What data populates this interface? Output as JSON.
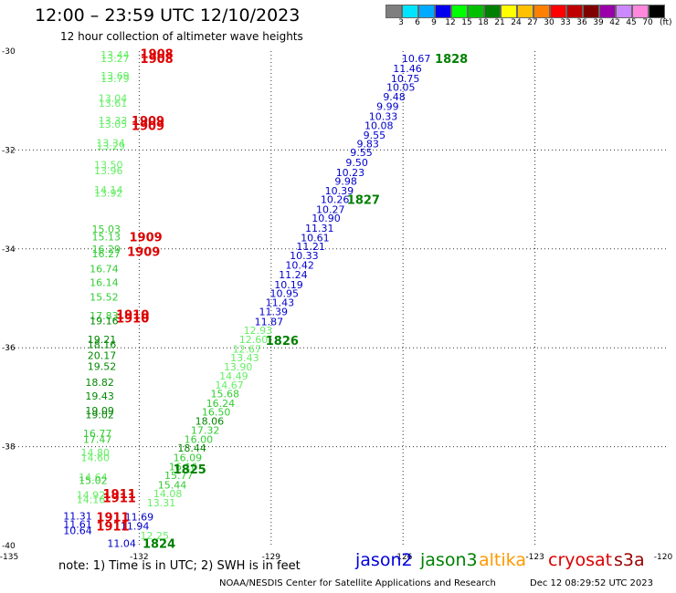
{
  "header": {
    "title": "12:00 – 23:59 UTC 12/10/2023",
    "subtitle": "12 hour collection of altimeter wave heights"
  },
  "color_scale": {
    "unit": "(ft)",
    "bins": [
      {
        "label": "3",
        "color": "#7f7f7f"
      },
      {
        "label": "6",
        "color": "#00e5ff"
      },
      {
        "label": "9",
        "color": "#00aaff"
      },
      {
        "label": "12",
        "color": "#0000ee"
      },
      {
        "label": "15",
        "color": "#00ff00"
      },
      {
        "label": "18",
        "color": "#00c000"
      },
      {
        "label": "21",
        "color": "#008000"
      },
      {
        "label": "24",
        "color": "#ffff00"
      },
      {
        "label": "27",
        "color": "#ffc000"
      },
      {
        "label": "30",
        "color": "#ff8000"
      },
      {
        "label": "33",
        "color": "#ff0000"
      },
      {
        "label": "36",
        "color": "#c00000"
      },
      {
        "label": "39",
        "color": "#800000"
      },
      {
        "label": "42",
        "color": "#9900aa"
      },
      {
        "label": "45",
        "color": "#cc88ff"
      },
      {
        "label": "70",
        "color": "#ff88dd"
      },
      {
        "label": "",
        "color": "#000000"
      }
    ]
  },
  "footer": {
    "note": "note:  1) Time is in UTC;  2) SWH is in feet",
    "satellites": [
      {
        "name": "jason2",
        "color": "#0000dd"
      },
      {
        "name": "jason3",
        "color": "#008000"
      },
      {
        "name": "altika",
        "color": "#ff9900"
      },
      {
        "name": "cryosat",
        "color": "#dd0000"
      },
      {
        "name": "s3a",
        "color": "#990000"
      }
    ],
    "credit": "NOAA/NESDIS Center for Satellite Applications and Research",
    "timestamp": "Dec 12 08:29:52 UTC 2023"
  },
  "chart_data": {
    "type": "scatter",
    "xlim": [
      -135,
      -120
    ],
    "ylim": [
      -40,
      -30
    ],
    "x_ticks": [
      "-135",
      "-132",
      "-129",
      "-126",
      "-123",
      "-120"
    ],
    "y_ticks": [
      "-30",
      "-32",
      "-34",
      "-36",
      "-38",
      "-40"
    ],
    "grid": true,
    "colors": {
      "swh_9_12": "#0000cc",
      "swh_12_15": "#66ee66",
      "swh_15_18": "#33cc33",
      "swh_18_21": "#008800",
      "time": "#008000",
      "time_cryosat": "#dd0000"
    },
    "series": [
      {
        "name": "jason2",
        "points": [
          {
            "lon": -125.7,
            "lat": -30.15,
            "swh": "10.67",
            "color": "#0000cc"
          },
          {
            "lon": -125.9,
            "lat": -30.35,
            "swh": "11.46",
            "color": "#0000cc"
          },
          {
            "lon": -125.95,
            "lat": -30.55,
            "swh": "10.75",
            "color": "#0000cc"
          },
          {
            "lon": -126.05,
            "lat": -30.73,
            "swh": "10.05",
            "color": "#0000cc"
          },
          {
            "lon": -126.2,
            "lat": -30.92,
            "swh": "9.48",
            "color": "#0000cc"
          },
          {
            "lon": -126.35,
            "lat": -31.12,
            "swh": "9.99",
            "color": "#0000cc"
          },
          {
            "lon": -126.45,
            "lat": -31.32,
            "swh": "10.33",
            "color": "#0000cc"
          },
          {
            "lon": -126.55,
            "lat": -31.5,
            "swh": "10.08",
            "color": "#0000cc"
          },
          {
            "lon": -126.65,
            "lat": -31.7,
            "swh": "9.55",
            "color": "#0000cc"
          },
          {
            "lon": -126.8,
            "lat": -31.87,
            "swh": "9.83",
            "color": "#0000cc"
          },
          {
            "lon": -126.95,
            "lat": -32.05,
            "swh": "9.55",
            "color": "#0000cc"
          },
          {
            "lon": -127.05,
            "lat": -32.25,
            "swh": "9.50",
            "color": "#0000cc"
          },
          {
            "lon": -127.2,
            "lat": -32.45,
            "swh": "10.23",
            "color": "#0000cc"
          },
          {
            "lon": -127.3,
            "lat": -32.63,
            "swh": "9.98",
            "color": "#0000cc"
          },
          {
            "lon": -127.45,
            "lat": -32.82,
            "swh": "10.39",
            "color": "#0000cc"
          },
          {
            "lon": -127.55,
            "lat": -33.0,
            "swh": "10.26",
            "color": "#0000cc"
          },
          {
            "lon": -127.65,
            "lat": -33.2,
            "swh": "10.27",
            "color": "#0000cc"
          },
          {
            "lon": -127.75,
            "lat": -33.38,
            "swh": "10.90",
            "color": "#0000cc"
          },
          {
            "lon": -127.9,
            "lat": -33.58,
            "swh": "11.31",
            "color": "#0000cc"
          },
          {
            "lon": -128.0,
            "lat": -33.77,
            "swh": "10.61",
            "color": "#0000cc"
          },
          {
            "lon": -128.1,
            "lat": -33.95,
            "swh": "11.21",
            "color": "#0000cc"
          },
          {
            "lon": -128.25,
            "lat": -34.13,
            "swh": "10.33",
            "color": "#0000cc"
          },
          {
            "lon": -128.35,
            "lat": -34.33,
            "swh": "10.42",
            "color": "#0000cc"
          },
          {
            "lon": -128.5,
            "lat": -34.52,
            "swh": "11.24",
            "color": "#0000cc"
          },
          {
            "lon": -128.6,
            "lat": -34.72,
            "swh": "10.19",
            "color": "#0000cc"
          },
          {
            "lon": -128.7,
            "lat": -34.9,
            "swh": "10.95",
            "color": "#0000cc"
          },
          {
            "lon": -128.8,
            "lat": -35.08,
            "swh": "11.43",
            "color": "#0000cc"
          },
          {
            "lon": -128.95,
            "lat": -35.27,
            "swh": "11.39",
            "color": "#0000cc"
          },
          {
            "lon": -129.05,
            "lat": -35.47,
            "swh": "11.87",
            "color": "#0000cc"
          },
          {
            "lon": -132.0,
            "lat": -39.42,
            "swh": "11.69",
            "color": "#0000cc"
          },
          {
            "lon": -132.1,
            "lat": -39.6,
            "swh": "11.94",
            "color": "#0000cc"
          },
          {
            "lon": -132.4,
            "lat": -39.95,
            "swh": "11.04",
            "color": "#0000cc"
          },
          {
            "lon": -133.4,
            "lat": -39.4,
            "swh": "11.31",
            "color": "#0000cc"
          },
          {
            "lon": -133.4,
            "lat": -39.57,
            "swh": "11.61",
            "color": "#0000cc"
          },
          {
            "lon": -133.4,
            "lat": -39.7,
            "swh": "10.64",
            "color": "#0000cc"
          }
        ]
      },
      {
        "name": "jason3",
        "points": [
          {
            "lon": -129.3,
            "lat": -35.65,
            "swh": "12.93",
            "color": "#66ee66"
          },
          {
            "lon": -129.4,
            "lat": -35.83,
            "swh": "12.60",
            "color": "#66ee66"
          },
          {
            "lon": -129.55,
            "lat": -36.02,
            "swh": "12.67",
            "color": "#66ee66"
          },
          {
            "lon": -129.6,
            "lat": -36.2,
            "swh": "13.43",
            "color": "#66ee66"
          },
          {
            "lon": -129.75,
            "lat": -36.38,
            "swh": "13.90",
            "color": "#66ee66"
          },
          {
            "lon": -129.85,
            "lat": -36.57,
            "swh": "14.49",
            "color": "#66ee66"
          },
          {
            "lon": -129.95,
            "lat": -36.75,
            "swh": "14.67",
            "color": "#66ee66"
          },
          {
            "lon": -130.05,
            "lat": -36.93,
            "swh": "15.68",
            "color": "#33cc33"
          },
          {
            "lon": -130.15,
            "lat": -37.12,
            "swh": "16.24",
            "color": "#33cc33"
          },
          {
            "lon": -130.25,
            "lat": -37.3,
            "swh": "16.50",
            "color": "#33cc33"
          },
          {
            "lon": -130.4,
            "lat": -37.48,
            "swh": "18.06",
            "color": "#008800"
          },
          {
            "lon": -130.5,
            "lat": -37.67,
            "swh": "17.32",
            "color": "#33cc33"
          },
          {
            "lon": -130.65,
            "lat": -37.85,
            "swh": "16.00",
            "color": "#33cc33"
          },
          {
            "lon": -130.8,
            "lat": -38.03,
            "swh": "18.44",
            "color": "#008800"
          },
          {
            "lon": -130.9,
            "lat": -38.22,
            "swh": "16.09",
            "color": "#33cc33"
          },
          {
            "lon": -131.0,
            "lat": -38.4,
            "swh": "16.16",
            "color": "#33cc33"
          },
          {
            "lon": -131.1,
            "lat": -38.58,
            "swh": "15.77",
            "color": "#33cc33"
          },
          {
            "lon": -131.25,
            "lat": -38.77,
            "swh": "15.44",
            "color": "#33cc33"
          },
          {
            "lon": -131.35,
            "lat": -38.95,
            "swh": "14.08",
            "color": "#66ee66"
          },
          {
            "lon": -131.5,
            "lat": -39.13,
            "swh": "13.31",
            "color": "#66ee66"
          },
          {
            "lon": -131.65,
            "lat": -39.8,
            "swh": "12.25",
            "color": "#66ee66"
          },
          {
            "lon": -132.55,
            "lat": -30.07,
            "swh": "13.44",
            "color": "#66ee66"
          },
          {
            "lon": -132.55,
            "lat": -30.15,
            "swh": "13.27",
            "color": "#66ee66"
          },
          {
            "lon": -132.55,
            "lat": -30.5,
            "swh": "13.69",
            "color": "#66ee66"
          },
          {
            "lon": -132.55,
            "lat": -30.55,
            "swh": "13.79",
            "color": "#66ee66"
          },
          {
            "lon": -132.6,
            "lat": -30.95,
            "swh": "13.04",
            "color": "#66ee66"
          },
          {
            "lon": -132.6,
            "lat": -31.05,
            "swh": "13.61",
            "color": "#66ee66"
          },
          {
            "lon": -132.6,
            "lat": -31.4,
            "swh": "13.33",
            "color": "#66ee66"
          },
          {
            "lon": -132.6,
            "lat": -31.48,
            "swh": "13.05",
            "color": "#66ee66"
          },
          {
            "lon": -132.65,
            "lat": -31.85,
            "swh": "13.34",
            "color": "#66ee66"
          },
          {
            "lon": -132.65,
            "lat": -31.92,
            "swh": "13.29",
            "color": "#66ee66"
          },
          {
            "lon": -132.7,
            "lat": -32.3,
            "swh": "13.50",
            "color": "#66ee66"
          },
          {
            "lon": -132.7,
            "lat": -32.42,
            "swh": "13.96",
            "color": "#66ee66"
          },
          {
            "lon": -132.7,
            "lat": -32.8,
            "swh": "14.14",
            "color": "#66ee66"
          },
          {
            "lon": -132.7,
            "lat": -32.87,
            "swh": "13.92",
            "color": "#66ee66"
          },
          {
            "lon": -132.75,
            "lat": -33.6,
            "swh": "15.03",
            "color": "#33cc33"
          },
          {
            "lon": -132.75,
            "lat": -33.75,
            "swh": "15.13",
            "color": "#33cc33"
          },
          {
            "lon": -132.75,
            "lat": -34.0,
            "swh": "16.29",
            "color": "#33cc33"
          },
          {
            "lon": -132.75,
            "lat": -34.1,
            "swh": "16.27",
            "color": "#33cc33"
          },
          {
            "lon": -132.8,
            "lat": -34.4,
            "swh": "16.74",
            "color": "#33cc33"
          },
          {
            "lon": -132.8,
            "lat": -34.68,
            "swh": "16.14",
            "color": "#33cc33"
          },
          {
            "lon": -132.8,
            "lat": -34.97,
            "swh": "15.52",
            "color": "#33cc33"
          },
          {
            "lon": -132.8,
            "lat": -35.35,
            "swh": "17.83",
            "color": "#33cc33"
          },
          {
            "lon": -132.8,
            "lat": -35.45,
            "swh": "19.16",
            "color": "#008800"
          },
          {
            "lon": -132.85,
            "lat": -35.83,
            "swh": "19.21",
            "color": "#008800"
          },
          {
            "lon": -132.85,
            "lat": -35.93,
            "swh": "18.16",
            "color": "#008800"
          },
          {
            "lon": -132.85,
            "lat": -36.15,
            "swh": "20.17",
            "color": "#008800"
          },
          {
            "lon": -132.85,
            "lat": -36.37,
            "swh": "19.52",
            "color": "#008800"
          },
          {
            "lon": -132.9,
            "lat": -36.7,
            "swh": "18.82",
            "color": "#008800"
          },
          {
            "lon": -132.9,
            "lat": -36.97,
            "swh": "19.43",
            "color": "#008800"
          },
          {
            "lon": -132.9,
            "lat": -37.27,
            "swh": "19.09",
            "color": "#008800"
          },
          {
            "lon": -132.9,
            "lat": -37.35,
            "swh": "19.02",
            "color": "#008800"
          },
          {
            "lon": -132.95,
            "lat": -37.73,
            "swh": "16.77",
            "color": "#33cc33"
          },
          {
            "lon": -132.95,
            "lat": -37.85,
            "swh": "17.47",
            "color": "#33cc33"
          },
          {
            "lon": -133.0,
            "lat": -38.12,
            "swh": "14.80",
            "color": "#66ee66"
          },
          {
            "lon": -133.0,
            "lat": -38.22,
            "swh": "14.60",
            "color": "#66ee66"
          },
          {
            "lon": -133.05,
            "lat": -38.62,
            "swh": "14.64",
            "color": "#66ee66"
          },
          {
            "lon": -133.05,
            "lat": -38.68,
            "swh": "15.02",
            "color": "#33cc33"
          },
          {
            "lon": -133.1,
            "lat": -38.98,
            "swh": "14.92",
            "color": "#66ee66"
          },
          {
            "lon": -133.1,
            "lat": -39.07,
            "swh": "14.16",
            "color": "#66ee66"
          }
        ]
      }
    ],
    "pass_times": [
      {
        "label": "1828",
        "lon": -124.9,
        "lat": -30.15,
        "color": "#008000"
      },
      {
        "label": "1827",
        "lon": -126.9,
        "lat": -33.0,
        "color": "#008000"
      },
      {
        "label": "1826",
        "lon": -128.75,
        "lat": -35.85,
        "color": "#008000"
      },
      {
        "label": "1825",
        "lon": -130.85,
        "lat": -38.45,
        "color": "#008000"
      },
      {
        "label": "1824",
        "lon": -131.55,
        "lat": -39.95,
        "color": "#008000"
      },
      {
        "label": "1908",
        "lon": -131.6,
        "lat": -30.05,
        "color": "#dd0000"
      },
      {
        "label": "1908",
        "lon": -131.6,
        "lat": -30.15,
        "color": "#dd0000"
      },
      {
        "label": "1909",
        "lon": -131.8,
        "lat": -31.4,
        "color": "#dd0000"
      },
      {
        "label": "1909",
        "lon": -131.8,
        "lat": -31.5,
        "color": "#dd0000"
      },
      {
        "label": "1909",
        "lon": -131.85,
        "lat": -33.75,
        "color": "#dd0000"
      },
      {
        "label": "1909",
        "lon": -131.9,
        "lat": -34.05,
        "color": "#dd0000"
      },
      {
        "label": "1910",
        "lon": -132.15,
        "lat": -35.32,
        "color": "#dd0000"
      },
      {
        "label": "1910",
        "lon": -132.15,
        "lat": -35.4,
        "color": "#dd0000"
      },
      {
        "label": "1911",
        "lon": -132.45,
        "lat": -38.95,
        "color": "#dd0000"
      },
      {
        "label": "1911",
        "lon": -132.45,
        "lat": -39.03,
        "color": "#dd0000"
      },
      {
        "label": "1911",
        "lon": -132.6,
        "lat": -39.42,
        "color": "#dd0000"
      },
      {
        "label": "1911",
        "lon": -132.6,
        "lat": -39.6,
        "color": "#dd0000"
      }
    ]
  }
}
